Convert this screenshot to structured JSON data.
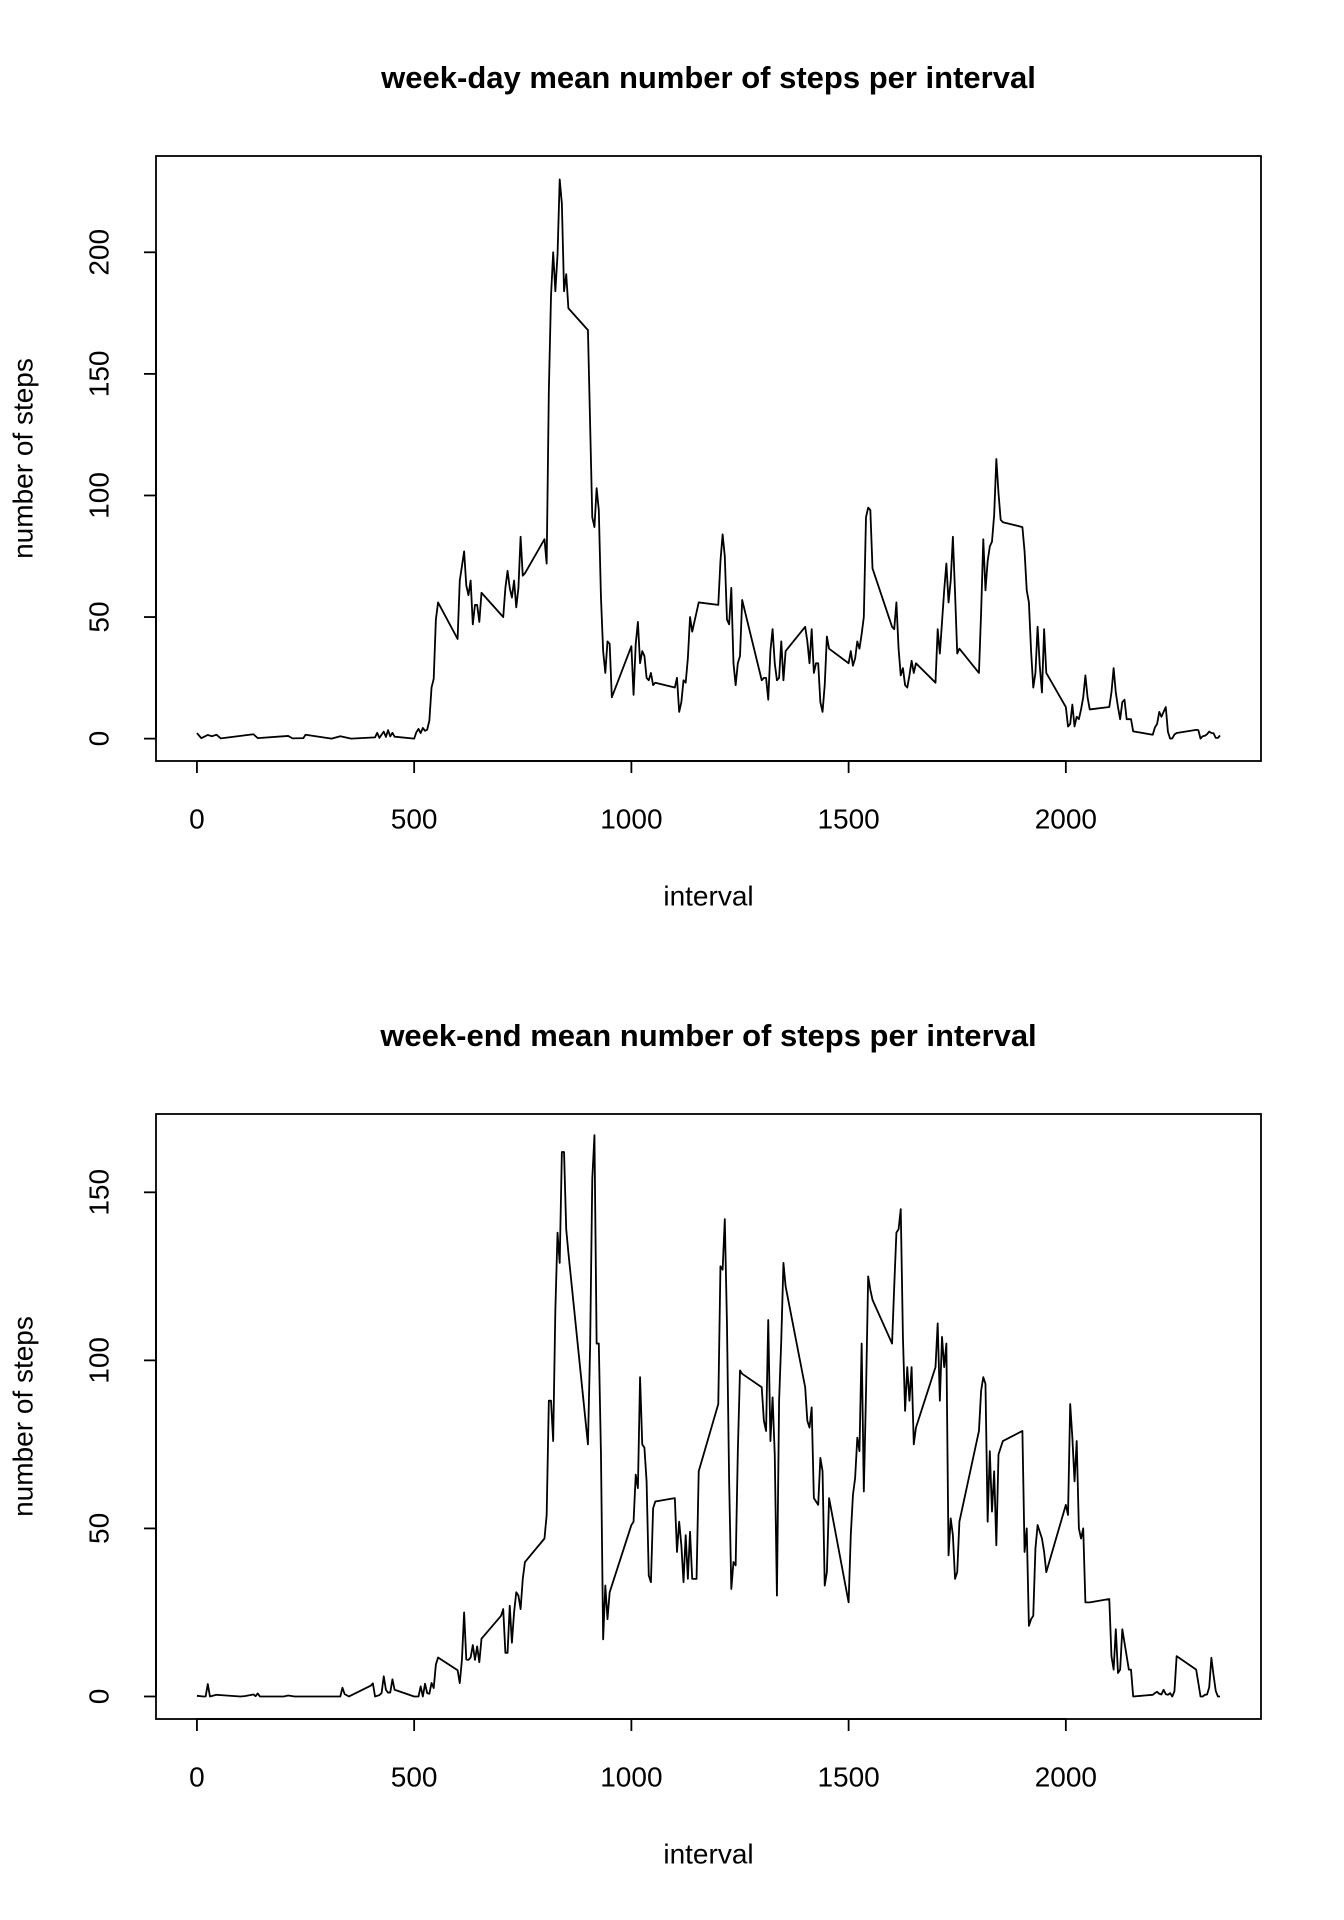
{
  "chart_data": [
    {
      "type": "line",
      "title": "week-day mean number of steps per interval",
      "x_label": "interval",
      "y_label": "number of steps",
      "color": "#000000",
      "xlim": [
        -94.2,
        2449.2
      ],
      "ylim": [
        -9.2,
        239.6
      ],
      "xticks": [
        0,
        500,
        1000,
        1500,
        2000
      ],
      "yticks": [
        0,
        50,
        100,
        150,
        200
      ],
      "x": [
        0,
        10,
        25,
        35,
        45,
        55,
        130,
        140,
        210,
        220,
        245,
        250,
        310,
        330,
        355,
        410,
        415,
        420,
        430,
        435,
        440,
        445,
        450,
        455,
        500,
        505,
        510,
        515,
        520,
        525,
        530,
        535,
        540,
        545,
        550,
        555,
        600,
        605,
        610,
        615,
        620,
        625,
        630,
        635,
        640,
        645,
        650,
        655,
        700,
        705,
        710,
        715,
        720,
        725,
        730,
        735,
        740,
        745,
        750,
        755,
        800,
        805,
        810,
        815,
        820,
        825,
        830,
        835,
        840,
        845,
        850,
        855,
        900,
        910,
        915,
        920,
        925,
        930,
        935,
        940,
        945,
        950,
        955,
        1000,
        1005,
        1010,
        1015,
        1020,
        1025,
        1030,
        1035,
        1040,
        1045,
        1050,
        1055,
        1100,
        1105,
        1110,
        1115,
        1120,
        1125,
        1130,
        1135,
        1140,
        1145,
        1150,
        1155,
        1200,
        1205,
        1210,
        1215,
        1220,
        1225,
        1230,
        1235,
        1240,
        1245,
        1250,
        1255,
        1300,
        1305,
        1310,
        1315,
        1320,
        1325,
        1330,
        1335,
        1340,
        1345,
        1350,
        1355,
        1400,
        1405,
        1410,
        1415,
        1420,
        1425,
        1430,
        1435,
        1440,
        1445,
        1450,
        1455,
        1500,
        1505,
        1510,
        1515,
        1520,
        1525,
        1530,
        1535,
        1540,
        1545,
        1550,
        1555,
        1600,
        1605,
        1610,
        1615,
        1620,
        1625,
        1630,
        1635,
        1640,
        1645,
        1650,
        1655,
        1700,
        1705,
        1710,
        1715,
        1720,
        1725,
        1730,
        1735,
        1740,
        1745,
        1750,
        1755,
        1800,
        1805,
        1810,
        1815,
        1820,
        1825,
        1830,
        1835,
        1840,
        1845,
        1850,
        1855,
        1900,
        1905,
        1910,
        1915,
        1920,
        1925,
        1930,
        1935,
        1940,
        1945,
        1950,
        1955,
        2000,
        2005,
        2010,
        2015,
        2020,
        2025,
        2030,
        2035,
        2040,
        2045,
        2050,
        2055,
        2100,
        2105,
        2110,
        2115,
        2120,
        2125,
        2130,
        2135,
        2140,
        2145,
        2150,
        2155,
        2200,
        2205,
        2210,
        2215,
        2220,
        2225,
        2230,
        2235,
        2240,
        2245,
        2250,
        2255,
        2300,
        2305,
        2310,
        2315,
        2320,
        2325,
        2330,
        2335,
        2340,
        2345,
        2350,
        2355
      ],
      "values": [
        2.3,
        0.2,
        1.5,
        1.0,
        1.6,
        0.1,
        1.8,
        0.2,
        1.1,
        0.1,
        0.2,
        1.6,
        0,
        1.0,
        0,
        0.5,
        2.4,
        0.3,
        2.9,
        0.7,
        3.5,
        0.9,
        2.4,
        0.8,
        0,
        2.6,
        4,
        2.3,
        4.4,
        3.2,
        3.7,
        7.4,
        21,
        24.6,
        49,
        56,
        41,
        65,
        71,
        77,
        63,
        59,
        65,
        47,
        55,
        55,
        48,
        60,
        51,
        50,
        62,
        69,
        62,
        58,
        65,
        54,
        62,
        83,
        67,
        68,
        82,
        72,
        143,
        182,
        200,
        184,
        199,
        230,
        220,
        184,
        191,
        177,
        168,
        91,
        87,
        103,
        94,
        58,
        36,
        27,
        40,
        39,
        17,
        38,
        18,
        39,
        48,
        31,
        36,
        34,
        25,
        24,
        27,
        22,
        23,
        21,
        25,
        11,
        15,
        24,
        23,
        33,
        50,
        44,
        48,
        52,
        56,
        55,
        73,
        84,
        75,
        49,
        47,
        62,
        31,
        22,
        31,
        34,
        57,
        24,
        25,
        25,
        16,
        36,
        45,
        31,
        24,
        25,
        40,
        24,
        36,
        46,
        40,
        31,
        45,
        27,
        31,
        31,
        15,
        11,
        22,
        42,
        37,
        31,
        36,
        30,
        33,
        40,
        37,
        43,
        50,
        91,
        95,
        94,
        70,
        46,
        45,
        56,
        37,
        26,
        29,
        22,
        21,
        26,
        32,
        27,
        31,
        23,
        45,
        35,
        48,
        61,
        72,
        56,
        65,
        83,
        60,
        35,
        37,
        27,
        52,
        82,
        61,
        73,
        79,
        81,
        92,
        115,
        101,
        90,
        89,
        87,
        77,
        61,
        56,
        36,
        21,
        27,
        46,
        30,
        19,
        45,
        27,
        13,
        5,
        6,
        14,
        5,
        9,
        8,
        12,
        17,
        26,
        17,
        12,
        13,
        19,
        29,
        19,
        13,
        8,
        15,
        16,
        8,
        8,
        8,
        3,
        1.6,
        4.6,
        6,
        11,
        9,
        11,
        13,
        2.8,
        0,
        0.1,
        1.7,
        2.3,
        3.6,
        3.5,
        0,
        1,
        1.2,
        1.8,
        2.9,
        2.3,
        2.2,
        0.3,
        0.3,
        1.3
      ]
    },
    {
      "type": "line",
      "title": "week-end mean number of steps per interval",
      "x_label": "interval",
      "y_label": "number of steps",
      "color": "#000000",
      "xlim": [
        -94.2,
        2449.2
      ],
      "ylim": [
        -6.7,
        173.3
      ],
      "xticks": [
        0,
        500,
        1000,
        1500,
        2000
      ],
      "yticks": [
        0,
        50,
        100,
        150
      ],
      "x": [
        0,
        15,
        20,
        25,
        30,
        45,
        55,
        100,
        110,
        130,
        135,
        140,
        145,
        200,
        210,
        225,
        250,
        300,
        330,
        335,
        340,
        350,
        400,
        405,
        410,
        415,
        420,
        425,
        430,
        435,
        440,
        445,
        450,
        455,
        500,
        510,
        515,
        520,
        525,
        530,
        535,
        540,
        545,
        550,
        555,
        600,
        605,
        610,
        615,
        620,
        625,
        630,
        635,
        640,
        645,
        650,
        655,
        700,
        705,
        710,
        715,
        720,
        725,
        730,
        735,
        740,
        745,
        750,
        755,
        800,
        805,
        810,
        815,
        820,
        825,
        830,
        835,
        840,
        845,
        850,
        855,
        900,
        905,
        910,
        915,
        920,
        925,
        930,
        935,
        940,
        945,
        950,
        955,
        1000,
        1005,
        1010,
        1015,
        1020,
        1025,
        1030,
        1035,
        1040,
        1045,
        1050,
        1055,
        1100,
        1105,
        1110,
        1115,
        1120,
        1125,
        1130,
        1135,
        1140,
        1145,
        1150,
        1155,
        1200,
        1205,
        1210,
        1215,
        1220,
        1225,
        1230,
        1235,
        1240,
        1245,
        1250,
        1255,
        1300,
        1305,
        1310,
        1315,
        1320,
        1325,
        1330,
        1335,
        1340,
        1345,
        1350,
        1355,
        1400,
        1405,
        1410,
        1415,
        1420,
        1425,
        1430,
        1435,
        1440,
        1445,
        1450,
        1455,
        1500,
        1505,
        1510,
        1515,
        1520,
        1525,
        1530,
        1535,
        1540,
        1545,
        1550,
        1555,
        1600,
        1605,
        1610,
        1615,
        1620,
        1625,
        1630,
        1635,
        1640,
        1645,
        1650,
        1655,
        1700,
        1705,
        1710,
        1715,
        1720,
        1725,
        1730,
        1735,
        1740,
        1745,
        1750,
        1755,
        1800,
        1805,
        1810,
        1815,
        1820,
        1825,
        1830,
        1835,
        1840,
        1845,
        1850,
        1855,
        1900,
        1905,
        1910,
        1915,
        1920,
        1925,
        1930,
        1935,
        1940,
        1945,
        1950,
        1955,
        2000,
        2005,
        2010,
        2015,
        2020,
        2025,
        2030,
        2035,
        2040,
        2045,
        2050,
        2055,
        2100,
        2105,
        2110,
        2115,
        2120,
        2125,
        2130,
        2135,
        2140,
        2145,
        2150,
        2155,
        2200,
        2205,
        2210,
        2215,
        2220,
        2225,
        2230,
        2235,
        2240,
        2245,
        2250,
        2255,
        2300,
        2305,
        2310,
        2315,
        2320,
        2325,
        2330,
        2335,
        2340,
        2345,
        2350,
        2355
      ],
      "values": [
        0.2,
        0,
        0,
        3.7,
        0,
        0.5,
        0.4,
        0,
        0.1,
        0.6,
        0.1,
        0.9,
        0,
        0,
        0.3,
        0,
        0,
        0,
        0,
        2.6,
        0.7,
        0,
        3.2,
        3.9,
        0,
        0.2,
        0.4,
        1,
        6,
        2,
        1.1,
        1.2,
        5.1,
        2,
        0,
        0,
        3,
        0,
        3.8,
        1,
        0.8,
        4,
        2.5,
        9.5,
        11.6,
        7.8,
        4,
        11,
        25,
        11,
        10.9,
        11.6,
        15.3,
        10.9,
        14.9,
        10.2,
        17.2,
        24,
        26,
        13,
        13,
        27,
        16,
        25,
        31,
        30,
        26,
        35,
        40,
        47,
        54,
        88,
        88,
        76,
        115,
        138,
        129,
        162,
        162,
        139,
        132,
        75,
        104,
        154,
        167,
        105,
        105,
        72,
        17,
        33,
        23,
        31,
        33,
        51,
        52,
        66,
        62,
        95,
        75,
        74,
        64,
        36,
        34,
        56,
        58,
        59,
        43,
        52,
        45,
        34,
        48,
        35,
        49,
        35,
        35,
        35,
        67,
        87,
        128,
        127,
        142,
        111,
        64,
        32,
        40,
        39,
        73,
        97,
        96,
        92,
        82,
        79,
        112,
        76,
        89,
        72,
        30,
        88,
        106,
        129,
        122,
        92,
        82,
        80,
        86,
        59,
        58,
        57,
        71,
        67,
        33,
        37,
        59,
        28,
        48,
        60,
        65,
        77,
        73,
        105,
        61,
        90,
        125,
        121,
        118,
        105,
        122,
        138,
        139,
        145,
        107,
        85,
        98,
        88,
        98,
        75,
        80,
        98,
        111,
        88,
        107,
        98,
        105,
        42,
        53,
        48,
        35,
        37,
        52,
        79,
        91,
        95,
        93,
        52,
        73,
        55,
        67,
        45,
        72,
        74,
        76,
        79,
        43,
        50,
        21,
        23,
        24,
        44,
        51,
        49,
        47,
        43,
        37,
        57,
        54,
        87,
        77,
        64,
        76,
        50,
        47,
        50,
        28,
        28,
        28,
        29,
        12,
        8,
        20,
        7,
        8,
        20,
        16,
        12,
        8,
        8,
        0,
        0.5,
        1,
        1.4,
        0.8,
        0.6,
        2,
        0.7,
        0.5,
        1,
        0,
        1.6,
        12,
        8,
        4,
        0,
        0,
        0.5,
        0.6,
        2.7,
        11.5,
        6.3,
        1.7,
        0,
        0
      ]
    }
  ]
}
